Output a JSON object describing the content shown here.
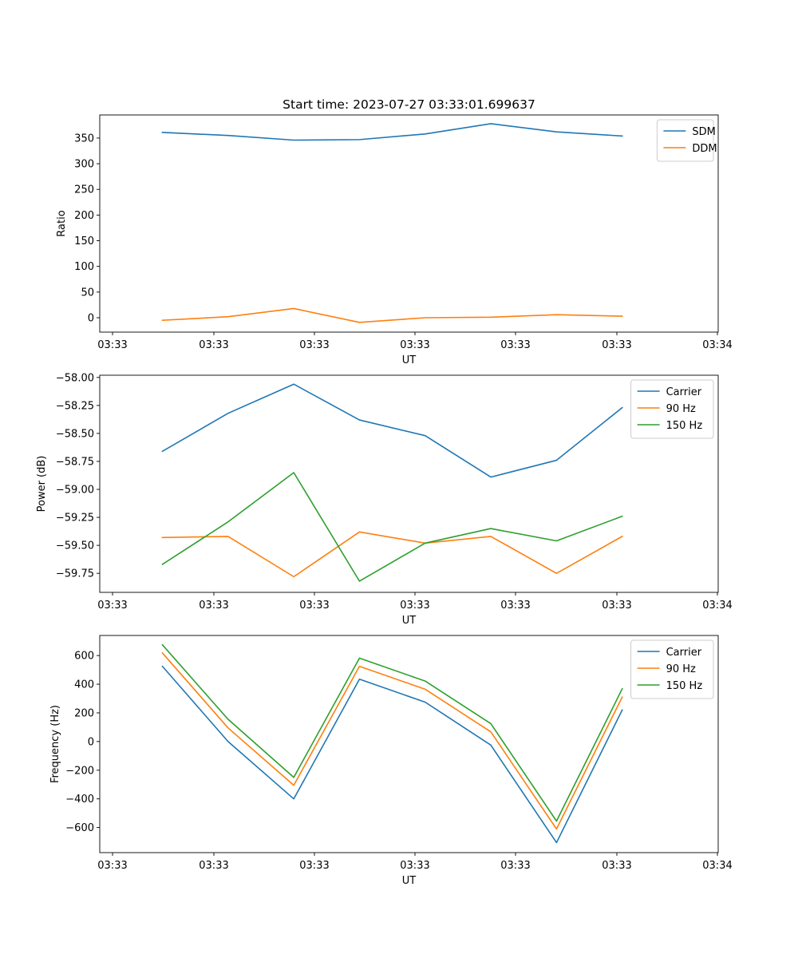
{
  "figure": {
    "title": "Start time: 2023-07-27 03:33:01.699637"
  },
  "chart_data": [
    {
      "type": "line",
      "title": "Start time: 2023-07-27 03:33:01.699637",
      "xlabel": "UT",
      "ylabel": "Ratio",
      "x_tick_labels": [
        "03:33",
        "03:33",
        "03:33",
        "03:33",
        "03:33",
        "03:33",
        "03:34"
      ],
      "y_ticks": [
        0,
        50,
        100,
        150,
        200,
        250,
        300,
        350
      ],
      "y_tick_labels": [
        "0",
        "50",
        "100",
        "150",
        "200",
        "250",
        "300",
        "350"
      ],
      "ylim": [
        -28,
        395
      ],
      "x_positions": [
        0.5,
        1.15,
        1.8,
        2.45,
        3.1,
        3.75,
        4.4,
        5.05
      ],
      "xlim": [
        -0.12,
        6.0
      ],
      "legend": "top-right",
      "grid": false,
      "series": [
        {
          "name": "SDM",
          "color": "#1f77b4",
          "values": [
            361,
            355,
            346,
            347,
            358,
            378,
            362,
            354
          ]
        },
        {
          "name": "DDM",
          "color": "#ff7f0e",
          "values": [
            -5,
            2,
            18,
            -9,
            0,
            1,
            6,
            3
          ]
        }
      ]
    },
    {
      "type": "line",
      "title": "",
      "xlabel": "UT",
      "ylabel": "Power (dB)",
      "x_tick_labels": [
        "03:33",
        "03:33",
        "03:33",
        "03:33",
        "03:33",
        "03:33",
        "03:34"
      ],
      "y_ticks": [
        -58.0,
        -58.25,
        -58.5,
        -58.75,
        -59.0,
        -59.25,
        -59.5,
        -59.75
      ],
      "y_tick_labels": [
        "−58.00",
        "−58.25",
        "−58.50",
        "−58.75",
        "−59.00",
        "−59.25",
        "−59.50",
        "−59.75"
      ],
      "ylim": [
        -59.92,
        -57.98
      ],
      "x_positions": [
        0.5,
        1.15,
        1.8,
        2.45,
        3.1,
        3.75,
        4.4,
        5.05
      ],
      "xlim": [
        -0.12,
        6.0
      ],
      "legend": "top-right",
      "grid": false,
      "series": [
        {
          "name": "Carrier",
          "color": "#1f77b4",
          "values": [
            -58.66,
            -58.32,
            -58.06,
            -58.38,
            -58.52,
            -58.89,
            -58.74,
            -58.27
          ]
        },
        {
          "name": "90 Hz",
          "color": "#ff7f0e",
          "values": [
            -59.43,
            -59.42,
            -59.78,
            -59.38,
            -59.48,
            -59.42,
            -59.75,
            -59.42
          ]
        },
        {
          "name": "150 Hz",
          "color": "#2ca02c",
          "values": [
            -59.67,
            -59.29,
            -58.85,
            -59.82,
            -59.48,
            -59.35,
            -59.46,
            -59.24
          ]
        }
      ]
    },
    {
      "type": "line",
      "title": "",
      "xlabel": "UT",
      "ylabel": "Frequency (Hz)",
      "x_tick_labels": [
        "03:33",
        "03:33",
        "03:33",
        "03:33",
        "03:33",
        "03:33",
        "03:34"
      ],
      "y_ticks": [
        -600,
        -400,
        -200,
        0,
        200,
        400,
        600
      ],
      "y_tick_labels": [
        "−600",
        "−400",
        "−200",
        "0",
        "200",
        "400",
        "600"
      ],
      "ylim": [
        -775,
        740
      ],
      "x_positions": [
        0.5,
        1.15,
        1.8,
        2.45,
        3.1,
        3.75,
        4.4,
        5.05
      ],
      "xlim": [
        -0.12,
        6.0
      ],
      "legend": "top-right",
      "grid": false,
      "series": [
        {
          "name": "Carrier",
          "color": "#1f77b4",
          "values": [
            525,
            0,
            -400,
            435,
            275,
            -25,
            -705,
            220
          ]
        },
        {
          "name": "90 Hz",
          "color": "#ff7f0e",
          "values": [
            618,
            95,
            -305,
            525,
            365,
            68,
            -610,
            310
          ]
        },
        {
          "name": "150 Hz",
          "color": "#2ca02c",
          "values": [
            675,
            155,
            -250,
            582,
            422,
            125,
            -555,
            368
          ]
        }
      ]
    }
  ]
}
